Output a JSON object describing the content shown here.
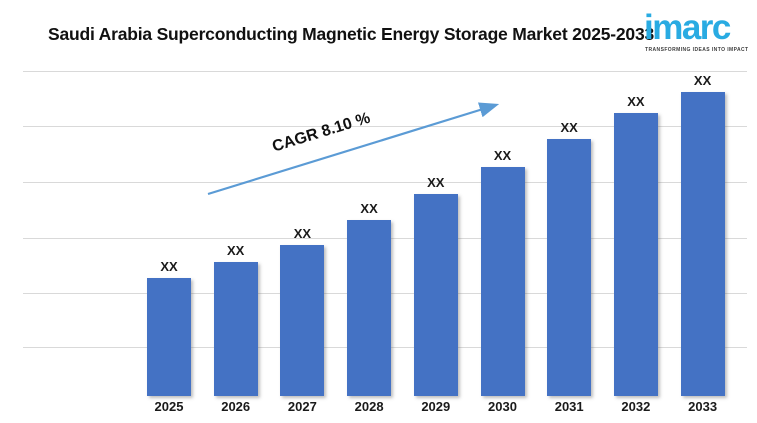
{
  "header": {
    "title": "Saudi Arabia Superconducting Magnetic Energy Storage Market 2025-2033",
    "logo": {
      "text": "imarc",
      "tagline": "TRANSFORMING IDEAS INTO IMPACT",
      "brand_color": "#29ABE2"
    }
  },
  "chart_data": {
    "type": "bar",
    "title": "Saudi Arabia Superconducting Magnetic Energy Storage Market 2025-2033",
    "categories": [
      "2025",
      "2026",
      "2027",
      "2028",
      "2029",
      "2030",
      "2031",
      "2032",
      "2033"
    ],
    "data_labels": [
      "XX",
      "XX",
      "XX",
      "XX",
      "XX",
      "XX",
      "XX",
      "XX",
      "XX"
    ],
    "values_percent_of_max": [
      38.8,
      44.1,
      49.7,
      57.9,
      66.4,
      75.3,
      84.5,
      93.1,
      100
    ],
    "values_note": "Actual market values are masked as 'XX' in the source image; bar heights estimated from pixels as percent of the tallest (2033) bar",
    "annotation": {
      "label": "CAGR 8.10 %"
    },
    "colors": {
      "bar": "#4472C4",
      "arrow": "#5B9BD5",
      "gridline": "#D9D9D9",
      "label": "#1A1A1A"
    },
    "xlabel": "",
    "ylabel": "",
    "legend": false,
    "grid": true,
    "y_axis_labels_visible": false
  }
}
